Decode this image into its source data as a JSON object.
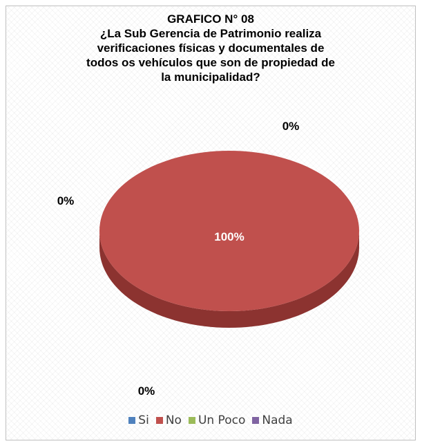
{
  "chart_data": {
    "type": "pie",
    "title_lines": [
      "GRAFICO N° 08",
      "¿La Sub Gerencia de Patrimonio realiza",
      "verificaciones físicas y documentales de",
      "todos os vehículos que son de propiedad de",
      "la municipalidad?"
    ],
    "categories": [
      "Si",
      "No",
      "Un Poco",
      "Nada"
    ],
    "values": [
      0,
      100,
      0,
      0
    ],
    "labels": [
      "0%",
      "100%",
      "0%",
      "0%"
    ],
    "colors": [
      "#4f81bd",
      "#c0504d",
      "#9bbb59",
      "#8064a2"
    ],
    "side_color": "#8c3330",
    "legend_position": "bottom",
    "style": "3d"
  }
}
